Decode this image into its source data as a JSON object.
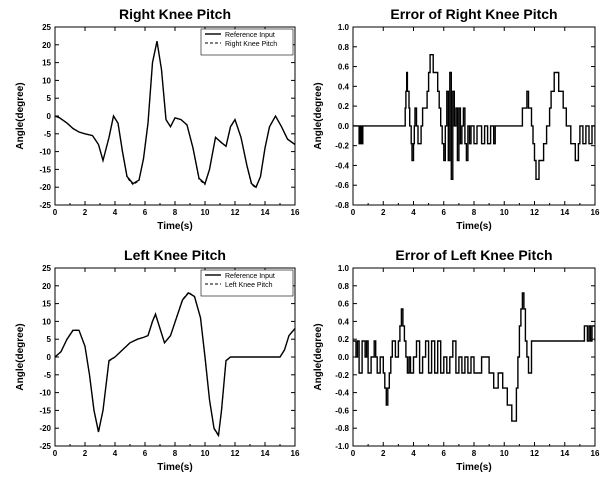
{
  "chart_data": [
    {
      "type": "line",
      "title": "Right Knee Pitch",
      "xlabel": "Time(s)",
      "ylabel": "Angle(degree)",
      "xlim": [
        0,
        16
      ],
      "ylim": [
        -25,
        25
      ],
      "xticks": [
        0,
        2,
        4,
        6,
        8,
        10,
        12,
        14,
        16
      ],
      "yticks": [
        -25,
        -20,
        -15,
        -10,
        -5,
        0,
        5,
        10,
        15,
        20,
        25
      ],
      "legend_position": "top-right",
      "series": [
        {
          "name": "Reference Input",
          "color": "#000000",
          "x": [
            0,
            0.3,
            0.8,
            1.2,
            1.6,
            2.0,
            2.5,
            2.9,
            3.2,
            3.6,
            3.9,
            4.2,
            4.5,
            4.8,
            5.2,
            5.6,
            5.9,
            6.2,
            6.5,
            6.8,
            7.1,
            7.4,
            7.7,
            8.0,
            8.4,
            8.8,
            9.2,
            9.6,
            10.0,
            10.3,
            10.7,
            11.1,
            11.4,
            11.7,
            12.0,
            12.4,
            12.8,
            13.1,
            13.4,
            13.7,
            14.0,
            14.3,
            14.7,
            15.1,
            15.5,
            16.0
          ],
          "y": [
            0,
            -0.5,
            -2,
            -3.5,
            -4.5,
            -5,
            -5.5,
            -8,
            -12.5,
            -6,
            0,
            -2,
            -10,
            -17,
            -19,
            -18,
            -12,
            -2,
            15,
            21,
            13,
            -1,
            -3,
            -0.5,
            -1,
            -2.5,
            -9,
            -17.5,
            -19,
            -15,
            -6,
            -7.5,
            -8.5,
            -3,
            -1,
            -6,
            -14,
            -19,
            -20,
            -17,
            -9,
            -3,
            0,
            -3,
            -6.5,
            -8
          ]
        },
        {
          "name": "Right Knee Pitch",
          "color": "#000000",
          "x": [
            0,
            0.3,
            0.8,
            1.2,
            1.6,
            2.0,
            2.5,
            2.9,
            3.2,
            3.6,
            3.9,
            4.2,
            4.5,
            4.8,
            5.2,
            5.6,
            5.9,
            6.2,
            6.5,
            6.8,
            7.1,
            7.4,
            7.7,
            8.0,
            8.4,
            8.8,
            9.2,
            9.6,
            10.0,
            10.3,
            10.7,
            11.1,
            11.4,
            11.7,
            12.0,
            12.4,
            12.8,
            13.1,
            13.4,
            13.7,
            14.0,
            14.3,
            14.7,
            15.1,
            15.5,
            16.0
          ],
          "y": [
            0,
            -0.5,
            -2,
            -3.5,
            -4.5,
            -5,
            -5.5,
            -8,
            -12.5,
            -6.2,
            -0.2,
            -2,
            -10.3,
            -17.3,
            -19.3,
            -18.2,
            -12,
            -2,
            15,
            21,
            13,
            -1,
            -3,
            -0.6,
            -1,
            -2.6,
            -9.2,
            -17.8,
            -19.3,
            -15,
            -6,
            -7.5,
            -8.5,
            -3.2,
            -1,
            -6,
            -14.2,
            -19.3,
            -20.2,
            -17,
            -9,
            -3.2,
            0,
            -3,
            -6.5,
            -8
          ]
        }
      ]
    },
    {
      "type": "line",
      "title": "Error of Right Knee Pitch",
      "xlabel": "Time(s)",
      "ylabel": "Angle(degree)",
      "xlim": [
        0,
        16
      ],
      "ylim": [
        -0.8,
        1.0
      ],
      "xticks": [
        0,
        2,
        4,
        6,
        8,
        10,
        12,
        14,
        16
      ],
      "yticks": [
        -0.8,
        -0.6,
        -0.4,
        -0.2,
        0.0,
        0.2,
        0.4,
        0.6,
        0.8,
        1.0
      ],
      "series": [
        {
          "color": "#000000",
          "x": [
            0,
            0.35,
            0.4,
            0.45,
            0.5,
            0.55,
            0.6,
            0.65,
            0.7,
            3.3,
            3.45,
            3.5,
            3.55,
            3.6,
            3.7,
            3.75,
            3.85,
            3.9,
            4.0,
            4.05,
            4.1,
            4.2,
            4.3,
            4.5,
            4.6,
            4.9,
            5.0,
            5.1,
            5.3,
            5.6,
            5.7,
            5.8,
            5.9,
            6.0,
            6.1,
            6.2,
            6.3,
            6.4,
            6.5,
            6.6,
            6.7,
            6.8,
            6.9,
            7.0,
            7.1,
            7.2,
            7.3,
            7.4,
            7.5,
            7.6,
            7.7,
            7.8,
            8.0,
            8.2,
            8.5,
            8.7,
            8.9,
            9.1,
            9.3,
            9.4,
            11.0,
            11.2,
            11.5,
            11.6,
            11.8,
            11.9,
            12.0,
            12.1,
            12.3,
            12.6,
            12.8,
            13.0,
            13.1,
            13.3,
            13.6,
            13.9,
            14.1,
            14.4,
            14.7,
            14.9,
            15.0,
            15.2,
            15.4,
            15.6,
            15.8,
            16.0
          ],
          "y": [
            0,
            0,
            -0.18,
            0,
            -0.18,
            0,
            -0.18,
            0,
            0,
            0,
            0.18,
            0.35,
            0.54,
            0.35,
            0.18,
            0,
            -0.18,
            -0.35,
            -0.18,
            0,
            0.18,
            0,
            -0.18,
            0,
            0.18,
            0.35,
            0.54,
            0.72,
            0.54,
            0.35,
            0.18,
            0,
            -0.18,
            -0.35,
            0,
            0.35,
            -0.35,
            0.54,
            -0.54,
            0.35,
            0,
            0.18,
            -0.35,
            0.18,
            -0.18,
            0,
            0.18,
            -0.18,
            -0.35,
            0,
            -0.18,
            0,
            -0.18,
            0,
            -0.18,
            0,
            -0.18,
            0,
            -0.18,
            0,
            0,
            0.18,
            0.35,
            0.18,
            0,
            -0.18,
            -0.35,
            -0.54,
            -0.35,
            -0.18,
            0,
            0.18,
            0.35,
            0.54,
            0.35,
            0.18,
            0,
            -0.18,
            -0.35,
            -0.18,
            0,
            -0.18,
            0,
            -0.18,
            0,
            -0.18
          ]
        }
      ]
    },
    {
      "type": "line",
      "title": "Left Knee Pitch",
      "xlabel": "Time(s)",
      "ylabel": "Angle(degree)",
      "xlim": [
        0,
        16
      ],
      "ylim": [
        -25,
        25
      ],
      "xticks": [
        0,
        2,
        4,
        6,
        8,
        10,
        12,
        14,
        16
      ],
      "yticks": [
        -25,
        -20,
        -15,
        -10,
        -5,
        0,
        5,
        10,
        15,
        20,
        25
      ],
      "legend_position": "top-right",
      "series": [
        {
          "name": "Reference Input",
          "color": "#000000",
          "x": [
            0,
            0.4,
            0.8,
            1.2,
            1.6,
            2.0,
            2.3,
            2.6,
            2.9,
            3.2,
            3.6,
            4.0,
            4.5,
            5.0,
            5.5,
            5.9,
            6.2,
            6.5,
            6.7,
            7.0,
            7.3,
            7.7,
            8.1,
            8.5,
            8.9,
            9.3,
            9.7,
            10.0,
            10.3,
            10.6,
            10.9,
            11.1,
            11.4,
            11.7,
            12.0,
            12.5,
            13.0,
            13.5,
            14.0,
            14.5,
            15.0,
            15.3,
            15.6,
            16.0
          ],
          "y": [
            0,
            1.5,
            5,
            7.5,
            7.5,
            3,
            -5,
            -15,
            -21,
            -15,
            -1,
            0,
            2,
            4,
            5,
            5.5,
            6,
            10,
            12,
            8,
            4,
            6,
            11,
            16,
            18,
            17,
            11,
            0,
            -12,
            -20,
            -22,
            -15,
            -1,
            0,
            0,
            0,
            0,
            0,
            0,
            0,
            0,
            2,
            6,
            8
          ]
        },
        {
          "name": "Left Knee Pitch",
          "color": "#000000",
          "x": [
            0,
            0.4,
            0.8,
            1.2,
            1.6,
            2.0,
            2.3,
            2.6,
            2.9,
            3.2,
            3.6,
            4.0,
            4.5,
            5.0,
            5.5,
            5.9,
            6.2,
            6.5,
            6.7,
            7.0,
            7.3,
            7.7,
            8.1,
            8.5,
            8.9,
            9.3,
            9.7,
            10.0,
            10.3,
            10.6,
            10.9,
            11.1,
            11.4,
            11.7,
            12.0,
            12.5,
            13.0,
            13.5,
            14.0,
            14.5,
            15.0,
            15.3,
            15.6,
            16.0
          ],
          "y": [
            0,
            1.5,
            5.1,
            7.6,
            7.5,
            2.8,
            -5.2,
            -15.2,
            -21.2,
            -15,
            -1.2,
            0,
            2,
            4,
            5,
            5.5,
            6,
            10.2,
            12.2,
            8,
            4,
            6,
            11.2,
            16.2,
            18.2,
            17,
            11,
            -0.2,
            -12.2,
            -20.2,
            -22.2,
            -15,
            -1.2,
            0,
            0,
            0,
            0,
            0,
            0,
            0,
            0,
            2,
            6.1,
            8.1
          ]
        }
      ]
    },
    {
      "type": "line",
      "title": "Error of Left Knee Pitch",
      "xlabel": "Time(s)",
      "ylabel": "Angle(degree)",
      "xlim": [
        0,
        16
      ],
      "ylim": [
        -1.0,
        1.0
      ],
      "xticks": [
        0,
        2,
        4,
        6,
        8,
        10,
        12,
        14,
        16
      ],
      "yticks": [
        -1.0,
        -0.8,
        -0.6,
        -0.4,
        -0.2,
        0.0,
        0.2,
        0.4,
        0.6,
        0.8,
        1.0
      ],
      "series": [
        {
          "color": "#000000",
          "x": [
            0,
            0.2,
            0.3,
            0.4,
            0.6,
            0.8,
            0.9,
            1.0,
            1.2,
            1.4,
            1.5,
            1.6,
            1.8,
            2.0,
            2.1,
            2.2,
            2.3,
            2.4,
            2.5,
            2.6,
            2.8,
            3.0,
            3.1,
            3.2,
            3.3,
            3.4,
            3.5,
            3.6,
            3.7,
            3.8,
            4.0,
            4.2,
            4.4,
            4.6,
            4.8,
            5.0,
            5.2,
            5.4,
            5.6,
            5.8,
            6.0,
            6.2,
            6.4,
            6.6,
            6.8,
            7.0,
            7.2,
            7.4,
            7.6,
            7.8,
            8.0,
            8.5,
            9.0,
            9.3,
            9.6,
            9.9,
            10.2,
            10.5,
            10.8,
            10.9,
            11.0,
            11.1,
            11.2,
            11.3,
            11.4,
            11.5,
            11.6,
            11.8,
            12.0,
            15.0,
            15.2,
            15.3,
            15.5,
            15.6,
            15.7,
            15.8,
            16.0
          ],
          "y": [
            0.18,
            0,
            0.18,
            -0.18,
            0.18,
            0,
            0.18,
            -0.18,
            0,
            0.18,
            0,
            -0.18,
            0,
            -0.18,
            -0.35,
            -0.54,
            -0.35,
            -0.18,
            0,
            0.18,
            0,
            0.18,
            0.35,
            0.54,
            0.35,
            0.18,
            0,
            -0.18,
            0,
            -0.18,
            0,
            0.18,
            -0.18,
            0,
            0.18,
            -0.18,
            0.18,
            -0.18,
            0.18,
            -0.18,
            0,
            -0.18,
            0,
            0.18,
            -0.18,
            0,
            -0.18,
            0,
            -0.18,
            0,
            -0.18,
            0,
            -0.18,
            -0.35,
            -0.18,
            -0.35,
            -0.54,
            -0.72,
            -0.35,
            0,
            0.35,
            0.54,
            0.72,
            0.54,
            0.18,
            0,
            -0.18,
            0.18,
            0.18,
            0.18,
            0.18,
            0.35,
            0.18,
            0.35,
            0.18,
            0.35,
            0.18
          ]
        }
      ]
    }
  ]
}
